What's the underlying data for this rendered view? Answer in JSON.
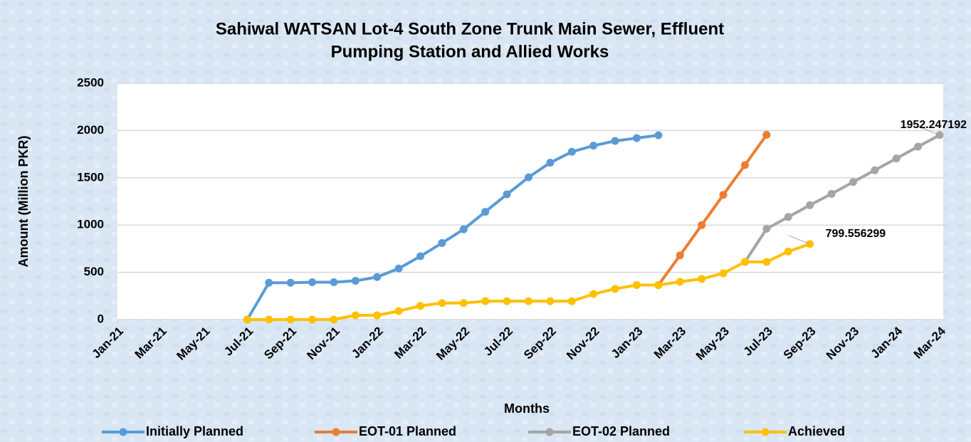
{
  "chart_data": {
    "type": "line",
    "title": [
      "Sahiwal WATSAN Lot-4 South Zone Trunk Main Sewer, Effluent",
      "Pumping Station and Allied Works"
    ],
    "xlabel": "Months",
    "ylabel": "Amount (Million PKR)",
    "xticks": [
      "Jan-21",
      "Mar-21",
      "May-21",
      "Jul-21",
      "Sep-21",
      "Nov-21",
      "Jan-22",
      "Mar-22",
      "May-22",
      "Jul-22",
      "Sep-22",
      "Nov-22",
      "Jan-23",
      "Mar-23",
      "May-23",
      "Jul-23",
      "Sep-23",
      "Nov-23",
      "Jan-24",
      "Mar-24"
    ],
    "ylim": [
      0,
      2500
    ],
    "yticks": [
      0,
      500,
      1000,
      1500,
      2000,
      2500
    ],
    "grid": true,
    "legend": "bottom",
    "series": [
      {
        "name": "Initially Planned",
        "color": "#5b9bd5",
        "x": [
          "Jul-21",
          "Aug-21",
          "Sep-21",
          "Oct-21",
          "Nov-21",
          "Dec-21",
          "Jan-22",
          "Feb-22",
          "Mar-22",
          "Apr-22",
          "May-22",
          "Jun-22",
          "Jul-22",
          "Aug-22",
          "Sep-22",
          "Oct-22",
          "Nov-22",
          "Dec-22",
          "Jan-23",
          "Feb-23"
        ],
        "values": [
          0,
          390,
          390,
          395,
          395,
          410,
          450,
          540,
          670,
          810,
          955,
          1140,
          1325,
          1505,
          1660,
          1775,
          1840,
          1890,
          1920,
          1950
        ]
      },
      {
        "name": "EOT-01 Planned",
        "color": "#ed7d31",
        "x": [
          "Feb-23",
          "Mar-23",
          "Apr-23",
          "May-23",
          "Jun-23",
          "Jul-23"
        ],
        "values": [
          365,
          680,
          1000,
          1320,
          1635,
          1955
        ]
      },
      {
        "name": "EOT-02 Planned",
        "color": "#a5a5a5",
        "x": [
          "Jun-23",
          "Jul-23",
          "Aug-23",
          "Sep-23",
          "Oct-23",
          "Nov-23",
          "Dec-23",
          "Jan-24",
          "Feb-24",
          "Mar-24"
        ],
        "values": [
          610,
          960,
          1085,
          1210,
          1330,
          1455,
          1580,
          1705,
          1830,
          1952.247192
        ],
        "data_label_index": 9
      },
      {
        "name": "Achieved",
        "color": "#ffc000",
        "x": [
          "Jul-21",
          "Aug-21",
          "Sep-21",
          "Oct-21",
          "Nov-21",
          "Dec-21",
          "Jan-22",
          "Feb-22",
          "Mar-22",
          "Apr-22",
          "May-22",
          "Jun-22",
          "Jul-22",
          "Aug-22",
          "Sep-22",
          "Oct-22",
          "Nov-22",
          "Dec-22",
          "Jan-23",
          "Feb-23",
          "Mar-23",
          "Apr-23",
          "May-23",
          "Jun-23",
          "Jul-23",
          "Aug-23",
          "Sep-23"
        ],
        "values": [
          0,
          0,
          0,
          0,
          0,
          45,
          45,
          90,
          145,
          175,
          175,
          195,
          195,
          195,
          195,
          195,
          270,
          325,
          365,
          365,
          400,
          430,
          490,
          610,
          610,
          720,
          799.556299
        ],
        "data_label_index": 26
      }
    ]
  }
}
